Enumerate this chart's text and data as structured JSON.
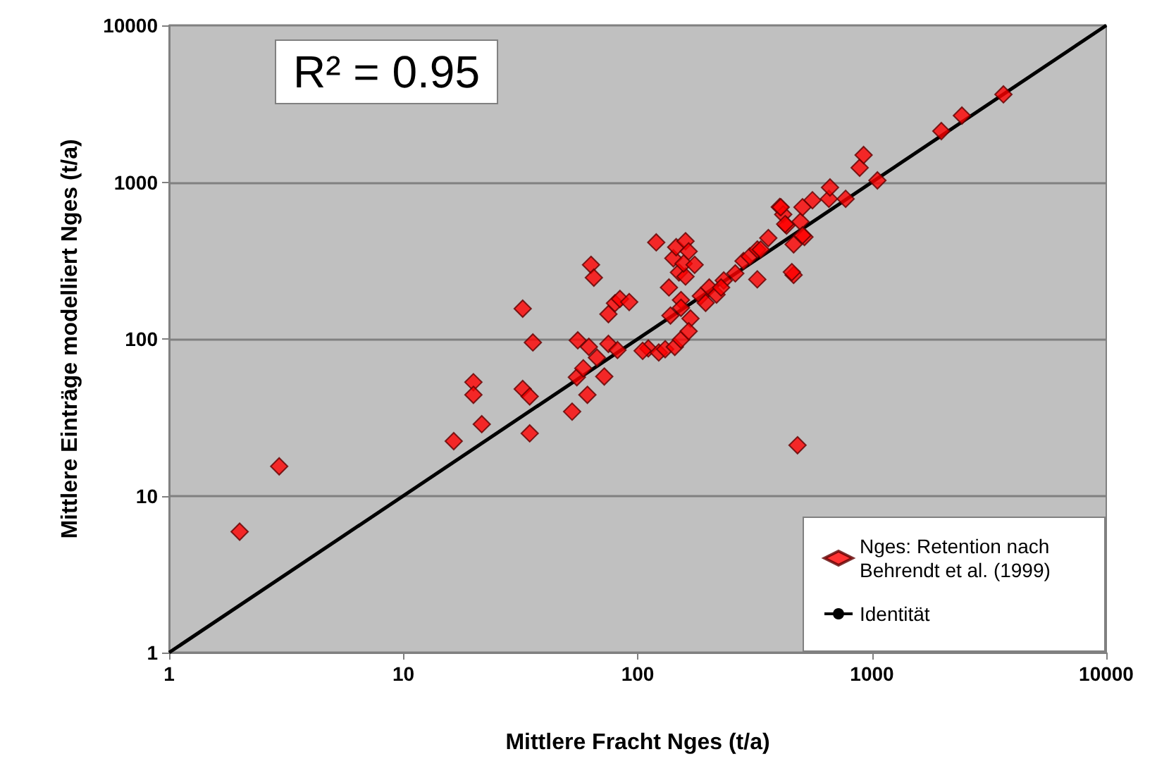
{
  "chart_data": {
    "type": "scatter",
    "xlabel": "Mittlere Fracht Nges (t/a)",
    "ylabel": "Mittlere Einträge modelliert Nges (t/a)",
    "annotations": [
      "R² = 0.95"
    ],
    "log": "xy",
    "xlim": [
      1,
      10000
    ],
    "ylim": [
      1,
      10000
    ],
    "xticks": [
      1,
      10,
      100,
      1000,
      10000
    ],
    "yticks": [
      1,
      10,
      100,
      1000,
      10000
    ],
    "grid": "y",
    "legend": "bottom right",
    "marker": "diamond",
    "series": [
      {
        "name": "Nges: Retention nach Behrendt et al. (1999)",
        "color": "#ff0000",
        "x": [
          2,
          2.95,
          16.4,
          19.9,
          19.9,
          21.6,
          32.3,
          32.3,
          34.6,
          35.7,
          34.6,
          52.5,
          55,
          55.5,
          58.6,
          61.9,
          61,
          63.2,
          65,
          67,
          72,
          75,
          80,
          75,
          84,
          92,
          82,
          111,
          105,
          123,
          120,
          136,
          131,
          144,
          138,
          153,
          142,
          150,
          146,
          160,
          160,
          165,
          157,
          153,
          153,
          168,
          165,
          175,
          186,
          202,
          195,
          217,
          233,
          227,
          261,
          283,
          301,
          324,
          335,
          324,
          361,
          404,
          418,
          432,
          463,
          463,
          481,
          495,
          515,
          557,
          408,
          505,
          426,
          505,
          455,
          655,
          662,
          772,
          886,
          921,
          1055,
          1977,
          2420,
          3640
        ],
        "values": [
          5.9,
          15.4,
          22.3,
          53,
          44,
          28.6,
          156,
          48,
          43,
          95,
          25,
          34.4,
          57,
          98,
          65,
          89,
          44,
          297,
          246,
          76,
          57.6,
          93,
          169,
          144,
          180,
          172,
          85,
          87,
          84,
          82,
          413,
          213,
          86,
          89,
          141,
          99,
          327,
          266,
          385,
          420,
          250,
          362,
          303,
          177,
          158,
          135,
          112,
          297,
          188,
          213,
          170,
          192,
          236,
          213,
          262,
          314,
          336,
          372,
          372,
          240,
          440,
          695,
          623,
          529,
          401,
          256,
          21,
          560,
          447,
          767,
          692,
          692,
          540,
          458,
          267,
          783,
          925,
          783,
          1236,
          1490,
          1026,
          2118,
          2660,
          3630
        ]
      },
      {
        "name": "Identität",
        "type": "line",
        "color": "#000000",
        "marker": "none",
        "line_style": "solid",
        "x": [
          1,
          10000
        ],
        "values": [
          1,
          10000
        ]
      }
    ]
  }
}
